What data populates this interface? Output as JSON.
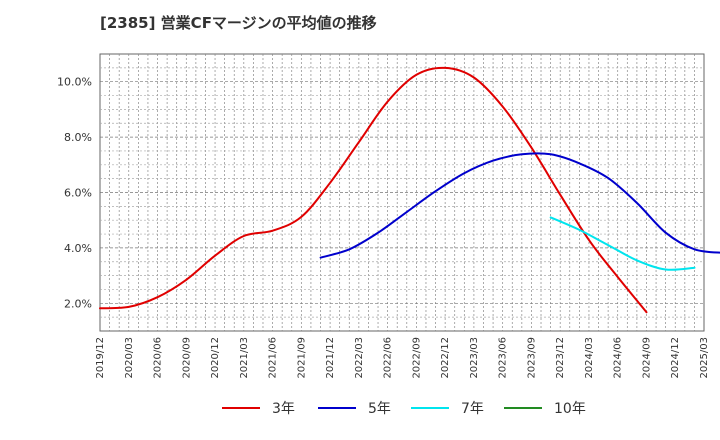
{
  "chart_data": {
    "type": "line",
    "title": "[2385]  営業CFマージンの平均値の推移",
    "ylabel": "",
    "xlabel": "",
    "ylim": [
      1.0,
      11.0
    ],
    "yticks": [
      2.0,
      4.0,
      6.0,
      8.0,
      10.0
    ],
    "ytick_labels": [
      "2.0%",
      "4.0%",
      "6.0%",
      "8.0%",
      "10.0%"
    ],
    "x_tick_labels": [
      "2019/12",
      "2020/03",
      "2020/06",
      "2020/09",
      "2020/12",
      "2021/03",
      "2021/06",
      "2021/09",
      "2021/12",
      "2022/03",
      "2022/06",
      "2022/09",
      "2022/12",
      "2023/03",
      "2023/06",
      "2023/09",
      "2023/12",
      "2024/03",
      "2024/06",
      "2024/09",
      "2024/12",
      "2025/03"
    ],
    "grid": true,
    "legend_position": "bottom",
    "series": [
      {
        "name": "3年",
        "color": "#e00000",
        "start_index": 0,
        "values": [
          1.82,
          1.87,
          2.22,
          2.85,
          3.72,
          4.43,
          4.62,
          5.12,
          6.35,
          7.82,
          9.28,
          10.25,
          10.5,
          10.15,
          9.1,
          7.62,
          5.92,
          4.28,
          2.95,
          1.68
        ]
      },
      {
        "name": "5年",
        "color": "#0000cc",
        "start_index": 7.67,
        "values": [
          3.65,
          3.95,
          4.55,
          5.3,
          6.05,
          6.7,
          7.15,
          7.38,
          7.38,
          7.05,
          6.52,
          5.62,
          4.55,
          3.95,
          3.82
        ]
      },
      {
        "name": "7年",
        "color": "#00e5ee",
        "start_index": 15.67,
        "values": [
          5.1,
          4.65,
          4.1,
          3.55,
          3.22,
          3.28
        ]
      },
      {
        "name": "10年",
        "color": "#228b22",
        "start_index": 0,
        "values": []
      }
    ]
  }
}
